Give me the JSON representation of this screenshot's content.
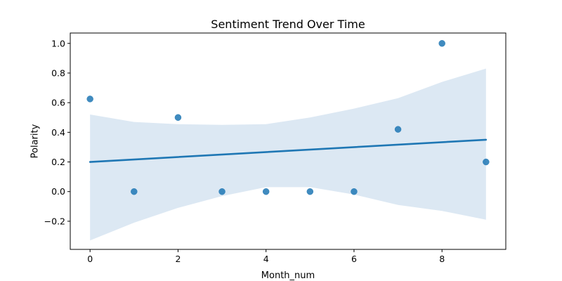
{
  "chart_data": {
    "type": "scatter",
    "title": "Sentiment Trend Over Time",
    "xlabel": "Month_num",
    "ylabel": "Polarity",
    "xlim": [
      -0.45,
      9.45
    ],
    "ylim": [
      -0.39,
      1.07
    ],
    "xticks": [
      0,
      2,
      4,
      6,
      8
    ],
    "xtick_labels": [
      "0",
      "2",
      "4",
      "6",
      "8"
    ],
    "yticks": [
      -0.2,
      0.0,
      0.2,
      0.4,
      0.6,
      0.8,
      1.0
    ],
    "ytick_labels": [
      "−0.2",
      "0.0",
      "0.2",
      "0.4",
      "0.6",
      "0.8",
      "1.0"
    ],
    "grid": false,
    "legend": "none",
    "colors": {
      "point": "#1f77b4",
      "line": "#1f77b4",
      "band": "#dce8f3"
    },
    "series": [
      {
        "x": [
          0,
          1,
          2,
          3,
          4,
          5,
          6,
          7,
          8,
          9
        ],
        "y": [
          0.625,
          0.0,
          0.5,
          0.0,
          0.0,
          0.0,
          0.0,
          0.42,
          1.0,
          0.2
        ]
      }
    ],
    "regression_line": {
      "x": [
        0,
        9
      ],
      "y": [
        0.2,
        0.35
      ]
    },
    "confidence_band": {
      "x": [
        0,
        1,
        2,
        3,
        4,
        5,
        6,
        7,
        8,
        9
      ],
      "upper": [
        0.52,
        0.47,
        0.455,
        0.45,
        0.455,
        0.5,
        0.56,
        0.63,
        0.74,
        0.83
      ],
      "lower": [
        -0.33,
        -0.21,
        -0.11,
        -0.03,
        0.03,
        0.03,
        -0.02,
        -0.09,
        -0.13,
        -0.19
      ]
    }
  }
}
